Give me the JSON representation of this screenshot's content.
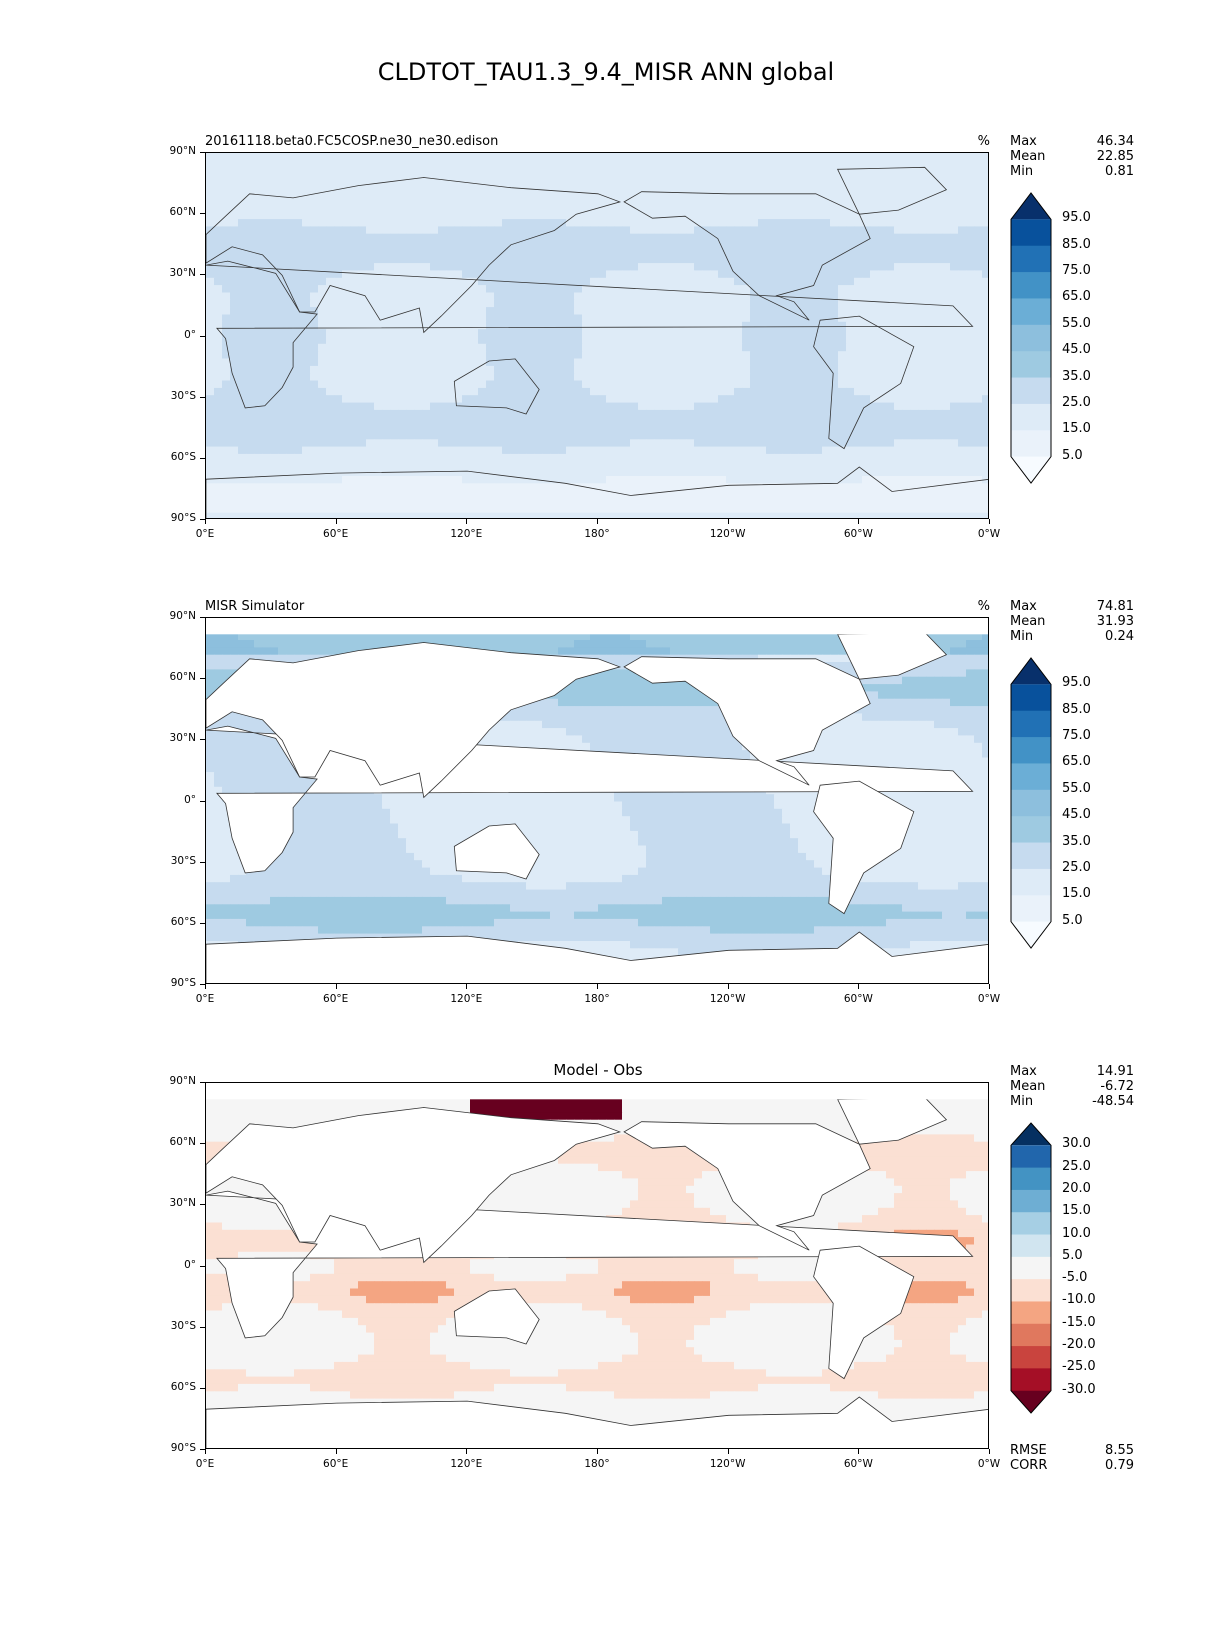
{
  "title": "CLDTOT_TAU1.3_9.4_MISR ANN global",
  "lat_labels": [
    "90°N",
    "60°N",
    "30°N",
    "0°",
    "30°S",
    "60°S",
    "90°S"
  ],
  "lon_labels": [
    "0°E",
    "60°E",
    "120°E",
    "180°",
    "120°W",
    "60°W",
    "0°W"
  ],
  "panels": [
    {
      "left_title": "20161118.beta0.FC5COSP.ne30_ne30.edison",
      "center_title": "",
      "units": "%",
      "stats": [
        {
          "label": "Max",
          "value": "46.34"
        },
        {
          "label": "Mean",
          "value": "22.85"
        },
        {
          "label": "Min",
          "value": "0.81"
        }
      ],
      "colorbar": {
        "labels": [
          "95.0",
          "85.0",
          "75.0",
          "65.0",
          "55.0",
          "45.0",
          "35.0",
          "25.0",
          "15.0",
          "5.0"
        ],
        "colors": [
          "#08306b",
          "#08519c",
          "#2171b5",
          "#4292c6",
          "#6baed6",
          "#8dbfdd",
          "#9ecae1",
          "#c6dbef",
          "#deebf7",
          "#eaf2fa",
          "#f7fbff"
        ]
      },
      "bottom_stats": []
    },
    {
      "left_title": "MISR Simulator",
      "center_title": "",
      "units": "%",
      "stats": [
        {
          "label": "Max",
          "value": "74.81"
        },
        {
          "label": "Mean",
          "value": "31.93"
        },
        {
          "label": "Min",
          "value": "0.24"
        }
      ],
      "colorbar": {
        "labels": [
          "95.0",
          "85.0",
          "75.0",
          "65.0",
          "55.0",
          "45.0",
          "35.0",
          "25.0",
          "15.0",
          "5.0"
        ],
        "colors": [
          "#08306b",
          "#08519c",
          "#2171b5",
          "#4292c6",
          "#6baed6",
          "#8dbfdd",
          "#9ecae1",
          "#c6dbef",
          "#deebf7",
          "#eaf2fa",
          "#f7fbff"
        ]
      },
      "bottom_stats": []
    },
    {
      "left_title": "",
      "center_title": "Model - Obs",
      "units": "",
      "stats": [
        {
          "label": "Max",
          "value": "14.91"
        },
        {
          "label": "Mean",
          "value": "-6.72"
        },
        {
          "label": "Min",
          "value": "-48.54"
        }
      ],
      "colorbar": {
        "labels": [
          "30.0",
          "25.0",
          "20.0",
          "15.0",
          "10.0",
          "5.0",
          "-5.0",
          "-10.0",
          "-15.0",
          "-20.0",
          "-25.0",
          "-30.0"
        ],
        "colors": [
          "#053061",
          "#2166ac",
          "#4393c3",
          "#6eaed3",
          "#a6cfe4",
          "#d1e5f0",
          "#f5f5f5",
          "#fbe0d3",
          "#f4a582",
          "#e0785e",
          "#c9443e",
          "#a50f26",
          "#67001f"
        ]
      },
      "bottom_stats": [
        {
          "label": "RMSE",
          "value": "8.55"
        },
        {
          "label": "CORR",
          "value": "0.79"
        }
      ]
    }
  ]
}
